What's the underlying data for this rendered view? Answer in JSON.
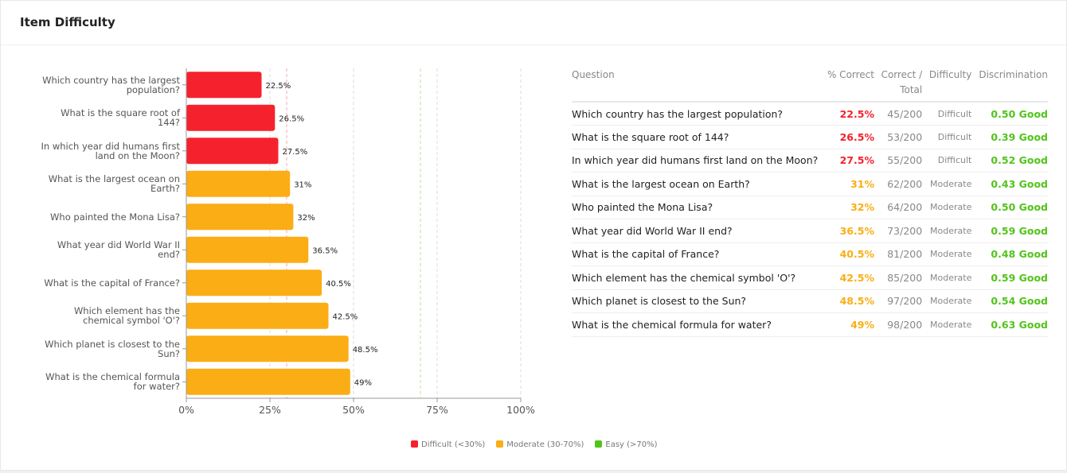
{
  "header": {
    "title": "Item Difficulty"
  },
  "colors": {
    "difficult": "#f5222d",
    "moderate": "#faad14",
    "easy": "#52c41a"
  },
  "chart_data": {
    "type": "bar",
    "orientation": "horizontal",
    "categories": [
      "Which country has the largest population?",
      "What is the square root of 144?",
      "In which year did humans first land on the Moon?",
      "What is the largest ocean on Earth?",
      "Who painted the Mona Lisa?",
      "What year did World War II end?",
      "What is the capital of France?",
      "Which element has the chemical symbol 'O'?",
      "Which planet is closest to the Sun?",
      "What is the chemical formula for water?"
    ],
    "values": [
      22.5,
      26.5,
      27.5,
      31,
      32,
      36.5,
      40.5,
      42.5,
      48.5,
      49
    ],
    "value_labels": [
      "22.5%",
      "26.5%",
      "27.5%",
      "31%",
      "32%",
      "36.5%",
      "40.5%",
      "42.5%",
      "48.5%",
      "49%"
    ],
    "xlim": [
      0,
      100
    ],
    "xticks": [
      "0%",
      "25%",
      "50%",
      "75%",
      "100%"
    ],
    "reference_lines": [
      30,
      70
    ],
    "grid": true,
    "legend": [
      {
        "label": "Difficult (<30%)",
        "color": "#f5222d"
      },
      {
        "label": "Moderate (30-70%)",
        "color": "#faad14"
      },
      {
        "label": "Easy (>70%)",
        "color": "#52c41a"
      }
    ],
    "legend_placement": "bottom"
  },
  "table": {
    "headers": {
      "question": "Question",
      "pct": "% Correct",
      "ct1": "Correct /",
      "ct2": "Total",
      "difficulty": "Difficulty",
      "discrimination": "Discrimination"
    },
    "rows": [
      {
        "q": "Which country has the largest population?",
        "pct": "22.5%",
        "ct": "45/200",
        "diff": "Difficult",
        "disc": "0.50 Good"
      },
      {
        "q": "What is the square root of 144?",
        "pct": "26.5%",
        "ct": "53/200",
        "diff": "Difficult",
        "disc": "0.39 Good"
      },
      {
        "q": "In which year did humans first land on the Moon?",
        "pct": "27.5%",
        "ct": "55/200",
        "diff": "Difficult",
        "disc": "0.52 Good"
      },
      {
        "q": "What is the largest ocean on Earth?",
        "pct": "31%",
        "ct": "62/200",
        "diff": "Moderate",
        "disc": "0.43 Good"
      },
      {
        "q": "Who painted the Mona Lisa?",
        "pct": "32%",
        "ct": "64/200",
        "diff": "Moderate",
        "disc": "0.50 Good"
      },
      {
        "q": "What year did World War II end?",
        "pct": "36.5%",
        "ct": "73/200",
        "diff": "Moderate",
        "disc": "0.59 Good"
      },
      {
        "q": "What is the capital of France?",
        "pct": "40.5%",
        "ct": "81/200",
        "diff": "Moderate",
        "disc": "0.48 Good"
      },
      {
        "q": "Which element has the chemical symbol 'O'?",
        "pct": "42.5%",
        "ct": "85/200",
        "diff": "Moderate",
        "disc": "0.59 Good"
      },
      {
        "q": "Which planet is closest to the Sun?",
        "pct": "48.5%",
        "ct": "97/200",
        "diff": "Moderate",
        "disc": "0.54 Good"
      },
      {
        "q": "What is the chemical formula for water?",
        "pct": "49%",
        "ct": "98/200",
        "diff": "Moderate",
        "disc": "0.63 Good"
      }
    ]
  }
}
